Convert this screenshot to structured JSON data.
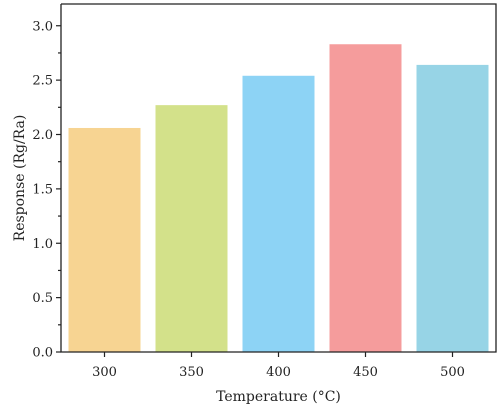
{
  "chart_data": {
    "type": "bar",
    "categories": [
      "300",
      "350",
      "400",
      "450",
      "500"
    ],
    "values": [
      2.06,
      2.27,
      2.54,
      2.83,
      2.64
    ],
    "colors": [
      "#f7d492",
      "#d3e18a",
      "#8dd3f5",
      "#f59c9c",
      "#97d4e6"
    ],
    "title": "",
    "xlabel": "Temperature (°C)",
    "ylabel": "Response (Rg/Ra)",
    "ylim": [
      0,
      3.2
    ],
    "yticks": [
      "0.0",
      "0.5",
      "1.0",
      "1.5",
      "2.0",
      "2.5",
      "3.0"
    ],
    "grid": false,
    "legend": "none"
  }
}
